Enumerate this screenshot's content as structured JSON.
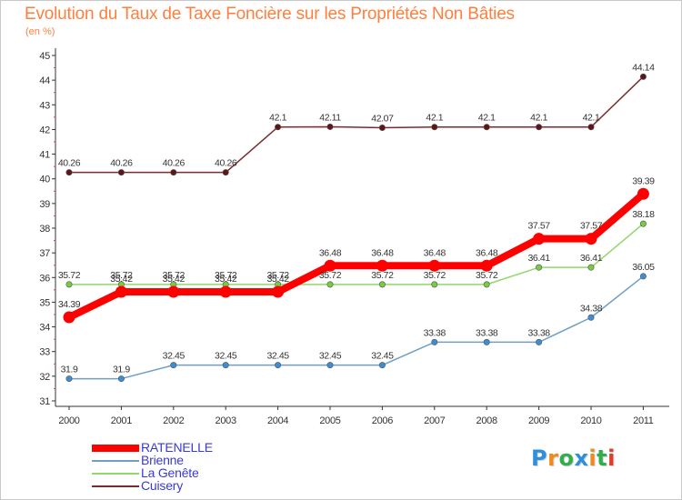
{
  "chart_data": {
    "type": "line",
    "title": "Evolution du Taux de Taxe Foncière sur les Propriétés Non Bâties",
    "subtitle": "(en %)",
    "xlabel": "",
    "ylabel": "",
    "ylim": [
      31,
      45
    ],
    "yticks": [
      "31",
      "32",
      "33",
      "34",
      "35",
      "36",
      "37",
      "38",
      "39",
      "40",
      "41",
      "42",
      "43",
      "44",
      "45"
    ],
    "categories": [
      "2000",
      "2001",
      "2002",
      "2003",
      "2004",
      "2005",
      "2006",
      "2007",
      "2008",
      "2009",
      "2010",
      "2011"
    ],
    "grid": false,
    "legend_position": "bottom-left",
    "series": [
      {
        "name": "Cuisery",
        "color": "#7b2b30",
        "dot_color": "#5e1518",
        "values": [
          40.26,
          40.26,
          40.26,
          40.26,
          42.1,
          42.11,
          42.07,
          42.1,
          42.1,
          42.1,
          42.1,
          44.14
        ],
        "labels": [
          "40.26",
          "40.26",
          "40.26",
          "40.26",
          "42.1",
          "42.11",
          "42.07",
          "42.1",
          "42.1",
          "42.1",
          "42.1",
          "44.14"
        ]
      },
      {
        "name": "La Genête",
        "color": "#90d86a",
        "dot_color": "#78cc42",
        "values": [
          35.72,
          35.72,
          35.72,
          35.72,
          35.72,
          35.72,
          35.72,
          35.72,
          35.72,
          36.41,
          36.41,
          38.18
        ],
        "labels": [
          "35.72",
          "35.72",
          "35.72",
          "35.72",
          "35.72",
          "35.72",
          "35.72",
          "35.72",
          "35.72",
          "36.41",
          "36.41",
          "38.18"
        ]
      },
      {
        "name": "Brienne",
        "color": "#6f9fc4",
        "dot_color": "#3b8ed6",
        "values": [
          31.9,
          31.9,
          32.45,
          32.45,
          32.45,
          32.45,
          32.45,
          33.38,
          33.38,
          33.38,
          34.38,
          36.05
        ],
        "labels": [
          "31.9",
          "31.9",
          "32.45",
          "32.45",
          "32.45",
          "32.45",
          "32.45",
          "33.38",
          "33.38",
          "33.38",
          "34.38",
          "36.05"
        ]
      },
      {
        "name": "RATENELLE",
        "color": "#ff0000",
        "dot_color": "#ff0000",
        "values": [
          34.39,
          35.42,
          35.42,
          35.42,
          35.42,
          36.48,
          36.48,
          36.48,
          36.48,
          37.57,
          37.57,
          39.39
        ],
        "labels": [
          "34.39",
          "35.42",
          "35.42",
          "35.42",
          "35.42",
          "36.48",
          "36.48",
          "36.48",
          "36.48",
          "37.57",
          "37.57",
          "39.39"
        ]
      }
    ],
    "legend": [
      {
        "name": "RATENELLE",
        "color": "#ff0000",
        "thick": true
      },
      {
        "name": "Brienne",
        "color": "#6f9fc4",
        "thick": false
      },
      {
        "name": "La Genête",
        "color": "#90d86a",
        "thick": false
      },
      {
        "name": "Cuisery",
        "color": "#7b2b30",
        "thick": false
      }
    ]
  },
  "logo": {
    "letters": [
      "P",
      "r",
      "o",
      "x",
      "i",
      "t",
      "i"
    ],
    "colors": [
      "#2f8fd8",
      "#f08a1e",
      "#2fae4a",
      "#2f8fd8",
      "#f08a1e",
      "#2fae4a",
      "#e23b2a"
    ]
  }
}
